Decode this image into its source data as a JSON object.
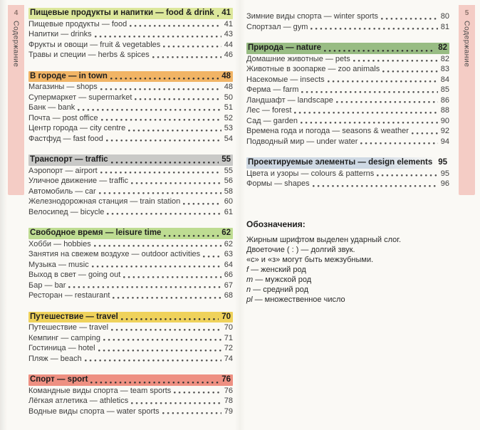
{
  "page_left": {
    "tab": {
      "page_number": "4",
      "label": "Содержание"
    },
    "sections": [
      {
        "heading": {
          "label": "Пищевые продукты и напитки — food & drink",
          "page": "41",
          "highlight": "#dce79b"
        },
        "items": [
          {
            "label": "Пищевые продукты — food",
            "page": "41"
          },
          {
            "label": "Напитки — drinks",
            "page": "43"
          },
          {
            "label": "Фрукты и овощи — fruit & vegetables",
            "page": "44"
          },
          {
            "label": "Травы и специи — herbs & spices",
            "page": "46"
          }
        ]
      },
      {
        "heading": {
          "label": "В городе — in town",
          "page": "48",
          "highlight": "#f1b465"
        },
        "items": [
          {
            "label": "Магазины — shops",
            "page": "48"
          },
          {
            "label": "Супермаркет — supermarket",
            "page": "50"
          },
          {
            "label": "Банк — bank",
            "page": "51"
          },
          {
            "label": "Почта — post office",
            "page": "52"
          },
          {
            "label": "Центр города — city centre",
            "page": "53"
          },
          {
            "label": "Фастфуд — fast food",
            "page": "54"
          }
        ]
      },
      {
        "heading": {
          "label": "Транспорт — traffic",
          "page": "55",
          "highlight": "#c9c9c7"
        },
        "items": [
          {
            "label": "Аэропорт — airport",
            "page": "55"
          },
          {
            "label": "Уличное движение — traffic",
            "page": "56"
          },
          {
            "label": "Автомобиль — car",
            "page": "58"
          },
          {
            "label": "Железнодорожная станция — train station",
            "page": "60"
          },
          {
            "label": "Велосипед — bicycle",
            "page": "61"
          }
        ]
      },
      {
        "heading": {
          "label": "Свободное время — leisure time",
          "page": "62",
          "highlight": "#bedc92"
        },
        "items": [
          {
            "label": "Хобби — hobbies",
            "page": "62"
          },
          {
            "label": "Занятия на свежем воздухе — outdoor activities",
            "page": "63"
          },
          {
            "label": "Музыка — music",
            "page": "64"
          },
          {
            "label": "Выход в свет — going out",
            "page": "66"
          },
          {
            "label": "Бар — bar",
            "page": "67"
          },
          {
            "label": "Ресторан — restaurant",
            "page": "68"
          }
        ]
      },
      {
        "heading": {
          "label": "Путешествие — travel",
          "page": "70",
          "highlight": "#efd25b"
        },
        "items": [
          {
            "label": "Путешествие — travel",
            "page": "70"
          },
          {
            "label": "Кемпинг — camping",
            "page": "71"
          },
          {
            "label": "Гостиница — hotel",
            "page": "72"
          },
          {
            "label": "Пляж — beach",
            "page": "74"
          }
        ]
      },
      {
        "heading": {
          "label": "Спорт — sport",
          "page": "76",
          "highlight": "#ee9082"
        },
        "items": [
          {
            "label": "Командные виды спорта — team sports",
            "page": "76"
          },
          {
            "label": "Лёгкая атлетика — athletics",
            "page": "78"
          },
          {
            "label": "Водные виды спорта — water sports",
            "page": "79"
          }
        ]
      }
    ]
  },
  "page_right": {
    "tab": {
      "page_number": "5",
      "label": "Содержание"
    },
    "leading_items": [
      {
        "label": "Зимние виды спорта — winter sports",
        "page": "80"
      },
      {
        "label": "Спортзал — gym",
        "page": "81"
      }
    ],
    "sections": [
      {
        "heading": {
          "label": "Природа — nature",
          "page": "82",
          "highlight": "#98bc83"
        },
        "items": [
          {
            "label": "Домашние животные — pets",
            "page": "82"
          },
          {
            "label": "Животные в зоопарке — zoo animals",
            "page": "83"
          },
          {
            "label": "Насекомые — insects",
            "page": "84"
          },
          {
            "label": "Ферма — farm",
            "page": "85"
          },
          {
            "label": "Ландшафт — landscape",
            "page": "86"
          },
          {
            "label": "Лес — forest",
            "page": "88"
          },
          {
            "label": "Сад — garden",
            "page": "90"
          },
          {
            "label": "Времена года и погода — seasons & weather",
            "page": "92"
          },
          {
            "label": "Подводный мир — under water",
            "page": "94"
          }
        ]
      },
      {
        "heading": {
          "label": "Проектируемые элементы — design elements",
          "page": "95",
          "highlight": "#cfd9e4",
          "fade": true
        },
        "items": [
          {
            "label": "Цвета и узоры — colours & patterns",
            "page": "95"
          },
          {
            "label": "Формы — shapes",
            "page": "96"
          }
        ]
      }
    ],
    "legend": {
      "title": "Обозначения:",
      "lines": [
        {
          "term": "",
          "text": "Жирным шрифтом выделен ударный слог."
        },
        {
          "term": "",
          "text": "Двоеточие ( : ) — долгий звук."
        },
        {
          "term": "",
          "text": "«с» и «з» могут быть межзубными."
        },
        {
          "term": "f",
          "text": "— женский род"
        },
        {
          "term": "m",
          "text": "— мужской род"
        },
        {
          "term": "n",
          "text": "— средний род"
        },
        {
          "term": "pl",
          "text": "— множественное число"
        }
      ]
    }
  },
  "colors": {
    "paper": "#faf9f5",
    "tab_pink": "#f4ccc5",
    "item_text": "#3d3d3d",
    "heading_text": "#1e1e1e"
  }
}
